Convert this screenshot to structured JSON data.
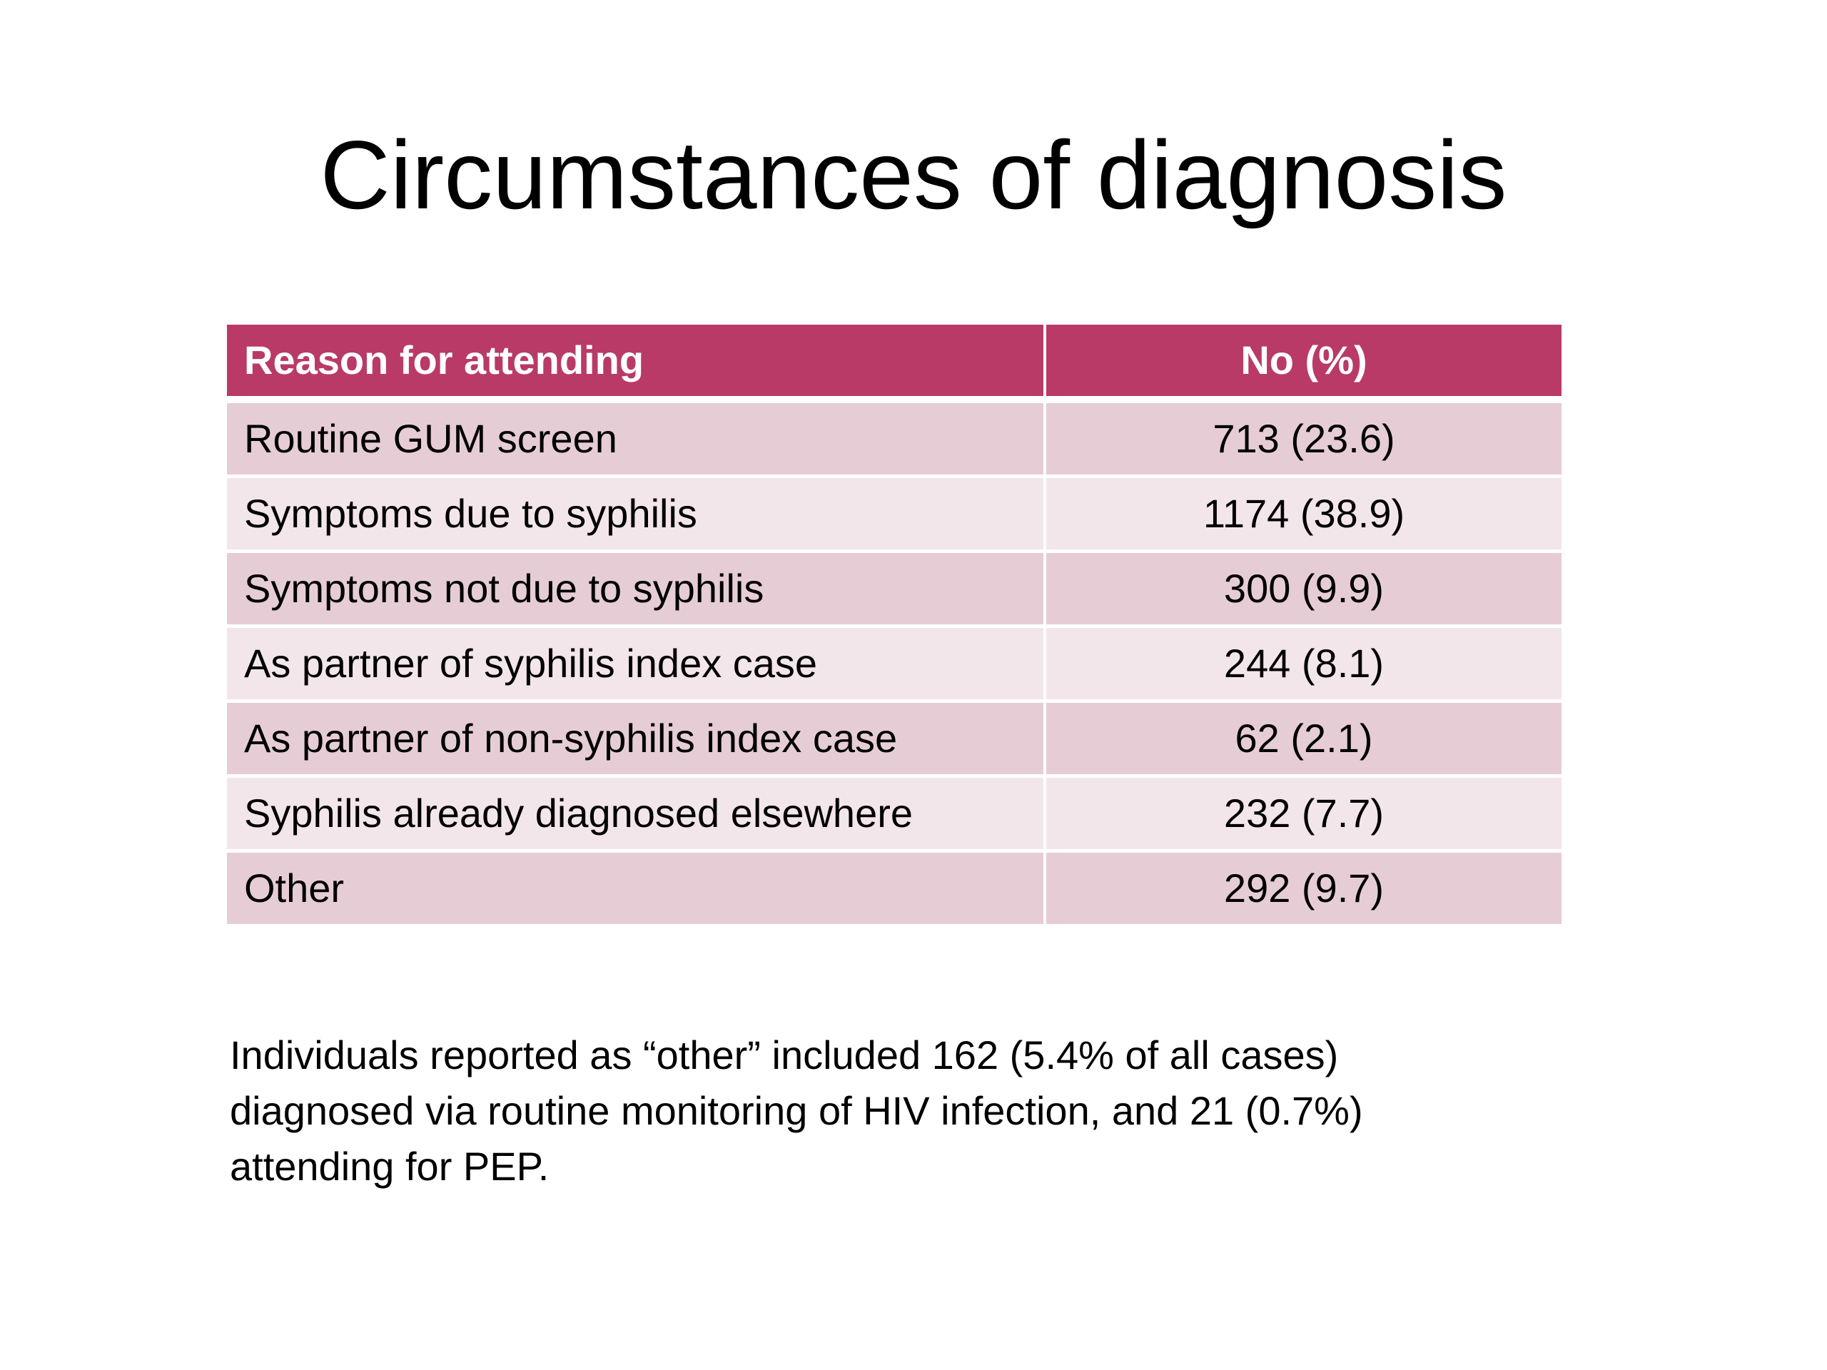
{
  "slide": {
    "title": "Circumstances of diagnosis",
    "table": {
      "headers": {
        "reason": "Reason for attending",
        "count": "No (%)"
      },
      "rows": [
        {
          "reason": "Routine GUM screen",
          "count": "713 (23.6)"
        },
        {
          "reason": "Symptoms due to syphilis",
          "count": "1174 (38.9)"
        },
        {
          "reason": "Symptoms not due to syphilis",
          "count": "300 (9.9)"
        },
        {
          "reason": "As partner of syphilis index case",
          "count": "244 (8.1)"
        },
        {
          "reason": "As partner of non-syphilis index case",
          "count": "62 (2.1)"
        },
        {
          "reason": "Syphilis already diagnosed elsewhere",
          "count": "232 (7.7)"
        },
        {
          "reason": "Other",
          "count": "292 (9.7)"
        }
      ]
    },
    "note_lines": [
      "Individuals reported as “other” included 162 (5.4% of all cases)",
      "diagnosed via routine monitoring of HIV infection, and 21 (0.7%)",
      "attending for PEP."
    ]
  },
  "colors": {
    "header_bg": "#b93a67",
    "row_dark": "#e6cdd5",
    "row_light": "#f3e6ea"
  }
}
